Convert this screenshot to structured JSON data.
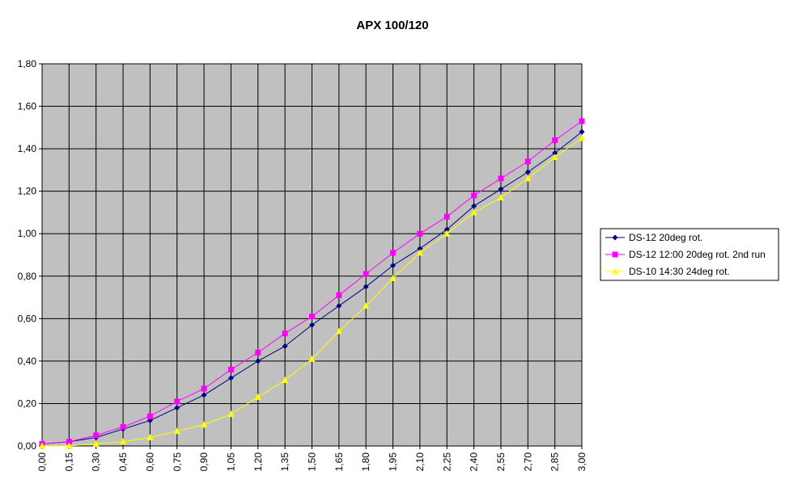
{
  "chart_data": {
    "type": "line",
    "title": "APX 100/120",
    "x": [
      0,
      0.15,
      0.3,
      0.45,
      0.6,
      0.75,
      0.9,
      1.05,
      1.2,
      1.35,
      1.5,
      1.65,
      1.8,
      1.95,
      2.1,
      2.25,
      2.4,
      2.55,
      2.7,
      2.85,
      3.0
    ],
    "xlim": [
      0,
      3.0
    ],
    "xticks": [
      {
        "value": 0,
        "label": "0,00"
      },
      {
        "value": 0.15,
        "label": "0,15"
      },
      {
        "value": 0.3,
        "label": "0,30"
      },
      {
        "value": 0.45,
        "label": "0,45"
      },
      {
        "value": 0.6,
        "label": "0,60"
      },
      {
        "value": 0.75,
        "label": "0,75"
      },
      {
        "value": 0.9,
        "label": "0,90"
      },
      {
        "value": 1.05,
        "label": "1,05"
      },
      {
        "value": 1.2,
        "label": "1,20"
      },
      {
        "value": 1.35,
        "label": "1,35"
      },
      {
        "value": 1.5,
        "label": "1,50"
      },
      {
        "value": 1.65,
        "label": "1,65"
      },
      {
        "value": 1.8,
        "label": "1,80"
      },
      {
        "value": 1.95,
        "label": "1,95"
      },
      {
        "value": 2.1,
        "label": "2,10"
      },
      {
        "value": 2.25,
        "label": "2,25"
      },
      {
        "value": 2.4,
        "label": "2,40"
      },
      {
        "value": 2.55,
        "label": "2,55"
      },
      {
        "value": 2.7,
        "label": "2,70"
      },
      {
        "value": 2.85,
        "label": "2,85"
      },
      {
        "value": 3.0,
        "label": "3,00"
      }
    ],
    "ylim": [
      0,
      1.8
    ],
    "yticks": [
      {
        "value": 0,
        "label": "0,00"
      },
      {
        "value": 0.2,
        "label": "0,20"
      },
      {
        "value": 0.4,
        "label": "0,40"
      },
      {
        "value": 0.6,
        "label": "0,60"
      },
      {
        "value": 0.8,
        "label": "0,80"
      },
      {
        "value": 1.0,
        "label": "1,00"
      },
      {
        "value": 1.2,
        "label": "1,20"
      },
      {
        "value": 1.4,
        "label": "1,40"
      },
      {
        "value": 1.6,
        "label": "1,60"
      },
      {
        "value": 1.8,
        "label": "1,80"
      }
    ],
    "grid": true,
    "legend": "right",
    "series": [
      {
        "name": "DS-12 20deg rot.",
        "color": "#000080",
        "marker": "diamond",
        "values": [
          0.01,
          0.02,
          0.04,
          0.08,
          0.12,
          0.18,
          0.24,
          0.32,
          0.4,
          0.47,
          0.57,
          0.66,
          0.75,
          0.85,
          0.93,
          1.02,
          1.13,
          1.21,
          1.29,
          1.38,
          1.48
        ]
      },
      {
        "name": "DS-12 12:00 20deg rot. 2nd run",
        "color": "#ff00ff",
        "marker": "square",
        "values": [
          0.01,
          0.02,
          0.05,
          0.09,
          0.14,
          0.21,
          0.27,
          0.36,
          0.44,
          0.53,
          0.61,
          0.71,
          0.81,
          0.91,
          1.0,
          1.08,
          1.18,
          1.26,
          1.34,
          1.44,
          1.53
        ]
      },
      {
        "name": "DS-10 14:30 24deg rot.",
        "color": "#ffff00",
        "marker": "triangle",
        "values": [
          0.0,
          0.0,
          0.01,
          0.02,
          0.04,
          0.07,
          0.1,
          0.15,
          0.23,
          0.31,
          0.41,
          0.54,
          0.66,
          0.79,
          0.91,
          1.0,
          1.1,
          1.17,
          1.26,
          1.36,
          1.45
        ]
      }
    ]
  }
}
